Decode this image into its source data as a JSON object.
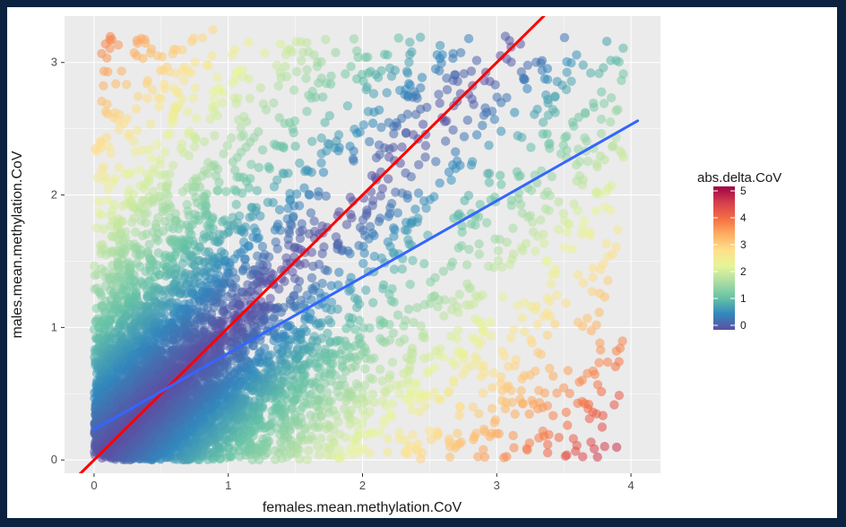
{
  "chart_data": {
    "type": "scatter",
    "xlabel": "females.mean.methylation.CoV",
    "ylabel": "males.mean.methylation.CoV",
    "xlim": [
      -0.22,
      4.22
    ],
    "ylim": [
      -0.1,
      3.35
    ],
    "x_ticks": [
      0,
      1,
      2,
      3,
      4
    ],
    "x_tick_labels": [
      "0",
      "1",
      "2",
      "3",
      "4"
    ],
    "y_ticks": [
      0,
      1,
      2,
      3
    ],
    "y_tick_labels": [
      "0",
      "1",
      "2",
      "3"
    ],
    "grid": true,
    "color_variable": "abs.delta.CoV",
    "legend": {
      "title": "abs.delta.CoV",
      "placement": "right",
      "range": [
        0,
        5
      ],
      "ticks": [
        0,
        1,
        2,
        3,
        4,
        5
      ],
      "tick_labels": [
        "0",
        "1",
        "2",
        "3",
        "4",
        "5"
      ],
      "colors": [
        "#5e4fa2",
        "#3288bd",
        "#66c2a5",
        "#abdda4",
        "#e6f598",
        "#fee08b",
        "#fdae61",
        "#f46d43",
        "#d53e4f",
        "#9e0142"
      ]
    },
    "lines": [
      {
        "label": "identity (y = x)",
        "color": "#ff0000",
        "x": [
          -0.2,
          3.4
        ],
        "y": [
          -0.2,
          3.4
        ]
      },
      {
        "label": "linear fit",
        "color": "#3366ff",
        "x": [
          0.0,
          4.05
        ],
        "y": [
          0.23,
          2.56
        ]
      }
    ],
    "point_cloud": {
      "description": "Dense scatter of tens of thousands of loci concentrated near the diagonal; color encodes abs.delta.CoV",
      "x_range": [
        0,
        4.05
      ],
      "y_range": [
        0,
        3.25
      ]
    }
  }
}
